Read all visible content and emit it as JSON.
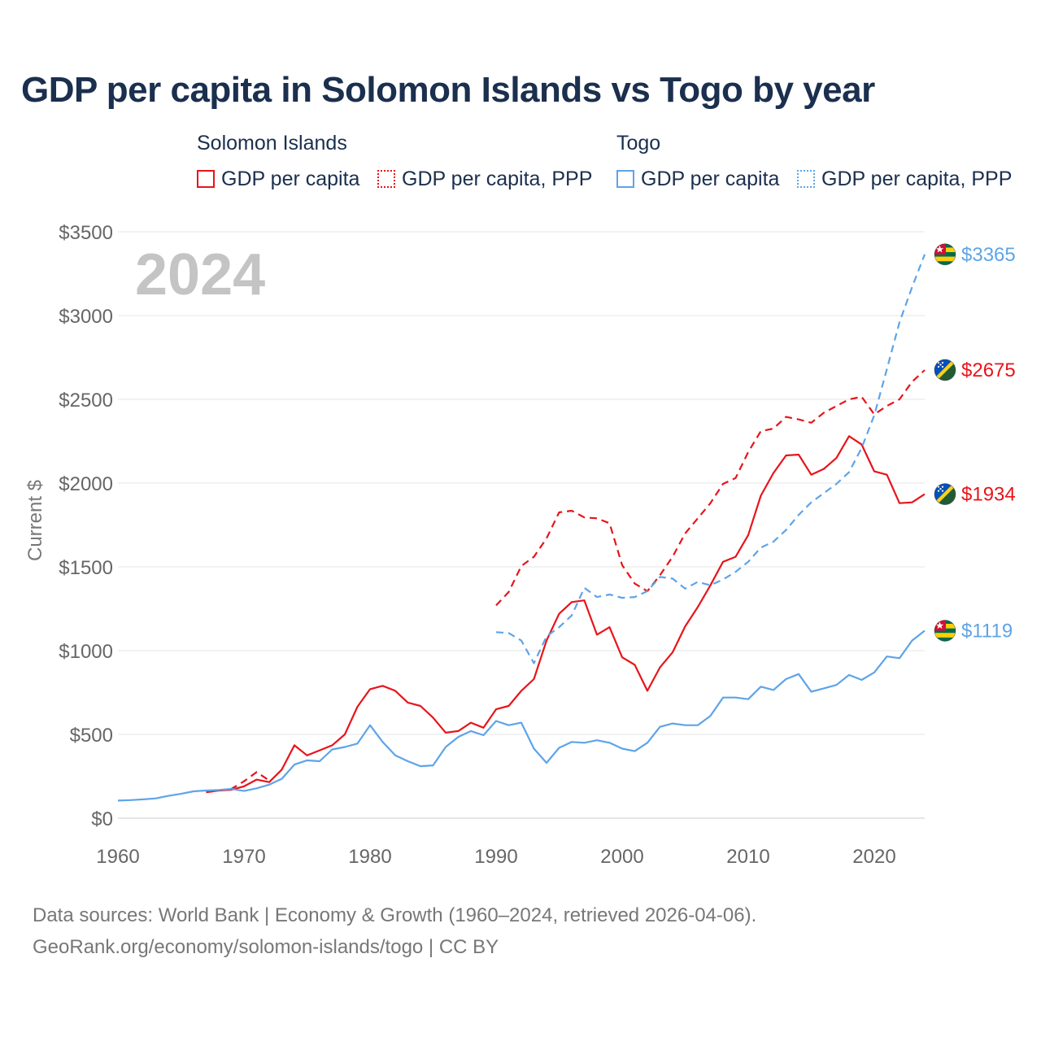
{
  "chart_data": {
    "type": "line",
    "title": "GDP per capita in Solomon Islands vs Togo by year",
    "ylabel": "Current $",
    "xlabel": "",
    "year_label": "2024",
    "xlim": [
      1960,
      2024
    ],
    "ylim": [
      0,
      3500
    ],
    "x_ticks": [
      1960,
      1970,
      1980,
      1990,
      2000,
      2010,
      2020
    ],
    "x_tick_labels": [
      "1960",
      "1970",
      "1980",
      "1990",
      "2000",
      "2010",
      "2020"
    ],
    "y_ticks": [
      0,
      500,
      1000,
      1500,
      2000,
      2500,
      3000,
      3500
    ],
    "y_tick_labels": [
      "$0",
      "$500",
      "$1000",
      "$1500",
      "$2000",
      "$2500",
      "$3000",
      "$3500"
    ],
    "grid": true,
    "legend_groups": [
      {
        "title": "Solomon Islands",
        "items": [
          {
            "label": "GDP per capita",
            "color": "#e8141a",
            "style": "solid"
          },
          {
            "label": "GDP per capita, PPP",
            "color": "#e8141a",
            "style": "dotted"
          }
        ]
      },
      {
        "title": "Togo",
        "items": [
          {
            "label": "GDP per capita",
            "color": "#5ea4e8",
            "style": "solid"
          },
          {
            "label": "GDP per capita, PPP",
            "color": "#5ea4e8",
            "style": "dotted"
          }
        ]
      }
    ],
    "series": [
      {
        "name": "Solomon Islands GDP per capita",
        "country": "Solomon Islands",
        "metric": "GDP per capita",
        "color": "#e8141a",
        "dash": "solid",
        "flag": "solomon-islands",
        "end_label": "$1934",
        "x": [
          1967,
          1968,
          1969,
          1970,
          1971,
          1972,
          1973,
          1974,
          1975,
          1976,
          1977,
          1978,
          1979,
          1980,
          1981,
          1982,
          1983,
          1984,
          1985,
          1986,
          1987,
          1988,
          1989,
          1990,
          1991,
          1992,
          1993,
          1994,
          1995,
          1996,
          1997,
          1998,
          1999,
          2000,
          2001,
          2002,
          2003,
          2004,
          2005,
          2006,
          2007,
          2008,
          2009,
          2010,
          2011,
          2012,
          2013,
          2014,
          2015,
          2016,
          2017,
          2018,
          2019,
          2020,
          2021,
          2022,
          2023,
          2024
        ],
        "y": [
          155,
          165,
          170,
          190,
          230,
          215,
          290,
          435,
          375,
          405,
          435,
          500,
          665,
          770,
          790,
          760,
          690,
          670,
          600,
          510,
          520,
          570,
          540,
          650,
          670,
          760,
          830,
          1060,
          1220,
          1290,
          1300,
          1095,
          1140,
          960,
          915,
          760,
          900,
          990,
          1145,
          1260,
          1390,
          1530,
          1560,
          1690,
          1925,
          2060,
          2165,
          2170,
          2050,
          2085,
          2150,
          2280,
          2230,
          2070,
          2050,
          1880,
          1885,
          1934
        ]
      },
      {
        "name": "Solomon Islands GDP per capita, PPP",
        "country": "Solomon Islands",
        "metric": "GDP per capita, PPP",
        "color": "#e8141a",
        "dash": "dashed",
        "flag": "solomon-islands",
        "end_label": "$2675",
        "x": [
          1967,
          1968,
          1969,
          1970,
          1971,
          1972,
          1990,
          1991,
          1992,
          1993,
          1994,
          1995,
          1996,
          1997,
          1998,
          1999,
          2000,
          2001,
          2002,
          2003,
          2004,
          2005,
          2006,
          2007,
          2008,
          2009,
          2010,
          2011,
          2012,
          2013,
          2014,
          2015,
          2016,
          2017,
          2018,
          2019,
          2020,
          2021,
          2022,
          2023,
          2024
        ],
        "y": [
          155,
          165,
          175,
          220,
          275,
          225,
          1270,
          1350,
          1505,
          1560,
          1670,
          1825,
          1835,
          1795,
          1790,
          1760,
          1510,
          1400,
          1355,
          1450,
          1560,
          1700,
          1790,
          1880,
          1995,
          2030,
          2185,
          2310,
          2325,
          2395,
          2380,
          2360,
          2420,
          2460,
          2500,
          2515,
          2410,
          2460,
          2500,
          2605,
          2675
        ],
        "segments": [
          [
            0,
            5
          ],
          [
            6,
            40
          ]
        ]
      },
      {
        "name": "Togo GDP per capita",
        "country": "Togo",
        "metric": "GDP per capita",
        "color": "#5ea4e8",
        "dash": "solid",
        "flag": "togo",
        "end_label": "$1119",
        "x": [
          1960,
          1961,
          1962,
          1963,
          1964,
          1965,
          1966,
          1967,
          1968,
          1969,
          1970,
          1971,
          1972,
          1973,
          1974,
          1975,
          1976,
          1977,
          1978,
          1979,
          1980,
          1981,
          1982,
          1983,
          1984,
          1985,
          1986,
          1987,
          1988,
          1989,
          1990,
          1991,
          1992,
          1993,
          1994,
          1995,
          1996,
          1997,
          1998,
          1999,
          2000,
          2001,
          2002,
          2003,
          2004,
          2005,
          2006,
          2007,
          2008,
          2009,
          2010,
          2011,
          2012,
          2013,
          2014,
          2015,
          2016,
          2017,
          2018,
          2019,
          2020,
          2021,
          2022,
          2023,
          2024
        ],
        "y": [
          105,
          108,
          112,
          118,
          133,
          145,
          160,
          165,
          168,
          175,
          162,
          178,
          200,
          235,
          320,
          345,
          340,
          410,
          425,
          445,
          555,
          455,
          375,
          340,
          310,
          315,
          425,
          485,
          520,
          495,
          580,
          555,
          570,
          415,
          330,
          420,
          455,
          450,
          465,
          450,
          415,
          400,
          450,
          545,
          565,
          555,
          555,
          610,
          720,
          720,
          710,
          785,
          765,
          830,
          860,
          755,
          775,
          795,
          855,
          825,
          870,
          965,
          955,
          1060,
          1119
        ]
      },
      {
        "name": "Togo GDP per capita, PPP",
        "country": "Togo",
        "metric": "GDP per capita, PPP",
        "color": "#5ea4e8",
        "dash": "dashed",
        "flag": "togo",
        "end_label": "$3365",
        "x": [
          1990,
          1991,
          1992,
          1993,
          1994,
          1995,
          1996,
          1997,
          1998,
          1999,
          2000,
          2001,
          2002,
          2003,
          2004,
          2005,
          2006,
          2007,
          2008,
          2009,
          2010,
          2011,
          2012,
          2013,
          2014,
          2015,
          2016,
          2017,
          2018,
          2019,
          2020,
          2021,
          2022,
          2023,
          2024
        ],
        "y": [
          1110,
          1105,
          1060,
          925,
          1085,
          1140,
          1210,
          1375,
          1320,
          1335,
          1315,
          1320,
          1355,
          1440,
          1430,
          1370,
          1410,
          1390,
          1425,
          1470,
          1530,
          1615,
          1650,
          1720,
          1810,
          1885,
          1940,
          1995,
          2065,
          2210,
          2405,
          2680,
          2960,
          3170,
          3365
        ]
      }
    ],
    "end_label_order": [
      {
        "series": 3,
        "label": "$3365",
        "color": "#5ea4e8",
        "flag": "togo"
      },
      {
        "series": 1,
        "label": "$2675",
        "color": "#e8141a",
        "flag": "solomon-islands"
      },
      {
        "series": 0,
        "label": "$1934",
        "color": "#e8141a",
        "flag": "solomon-islands"
      },
      {
        "series": 2,
        "label": "$1119",
        "color": "#5ea4e8",
        "flag": "togo"
      }
    ]
  },
  "footer": {
    "line1": "Data sources: World Bank | Economy & Growth (1960–2024, retrieved 2026-04-06).",
    "line2": "GeoRank.org/economy/solomon-islands/togo | CC BY"
  }
}
